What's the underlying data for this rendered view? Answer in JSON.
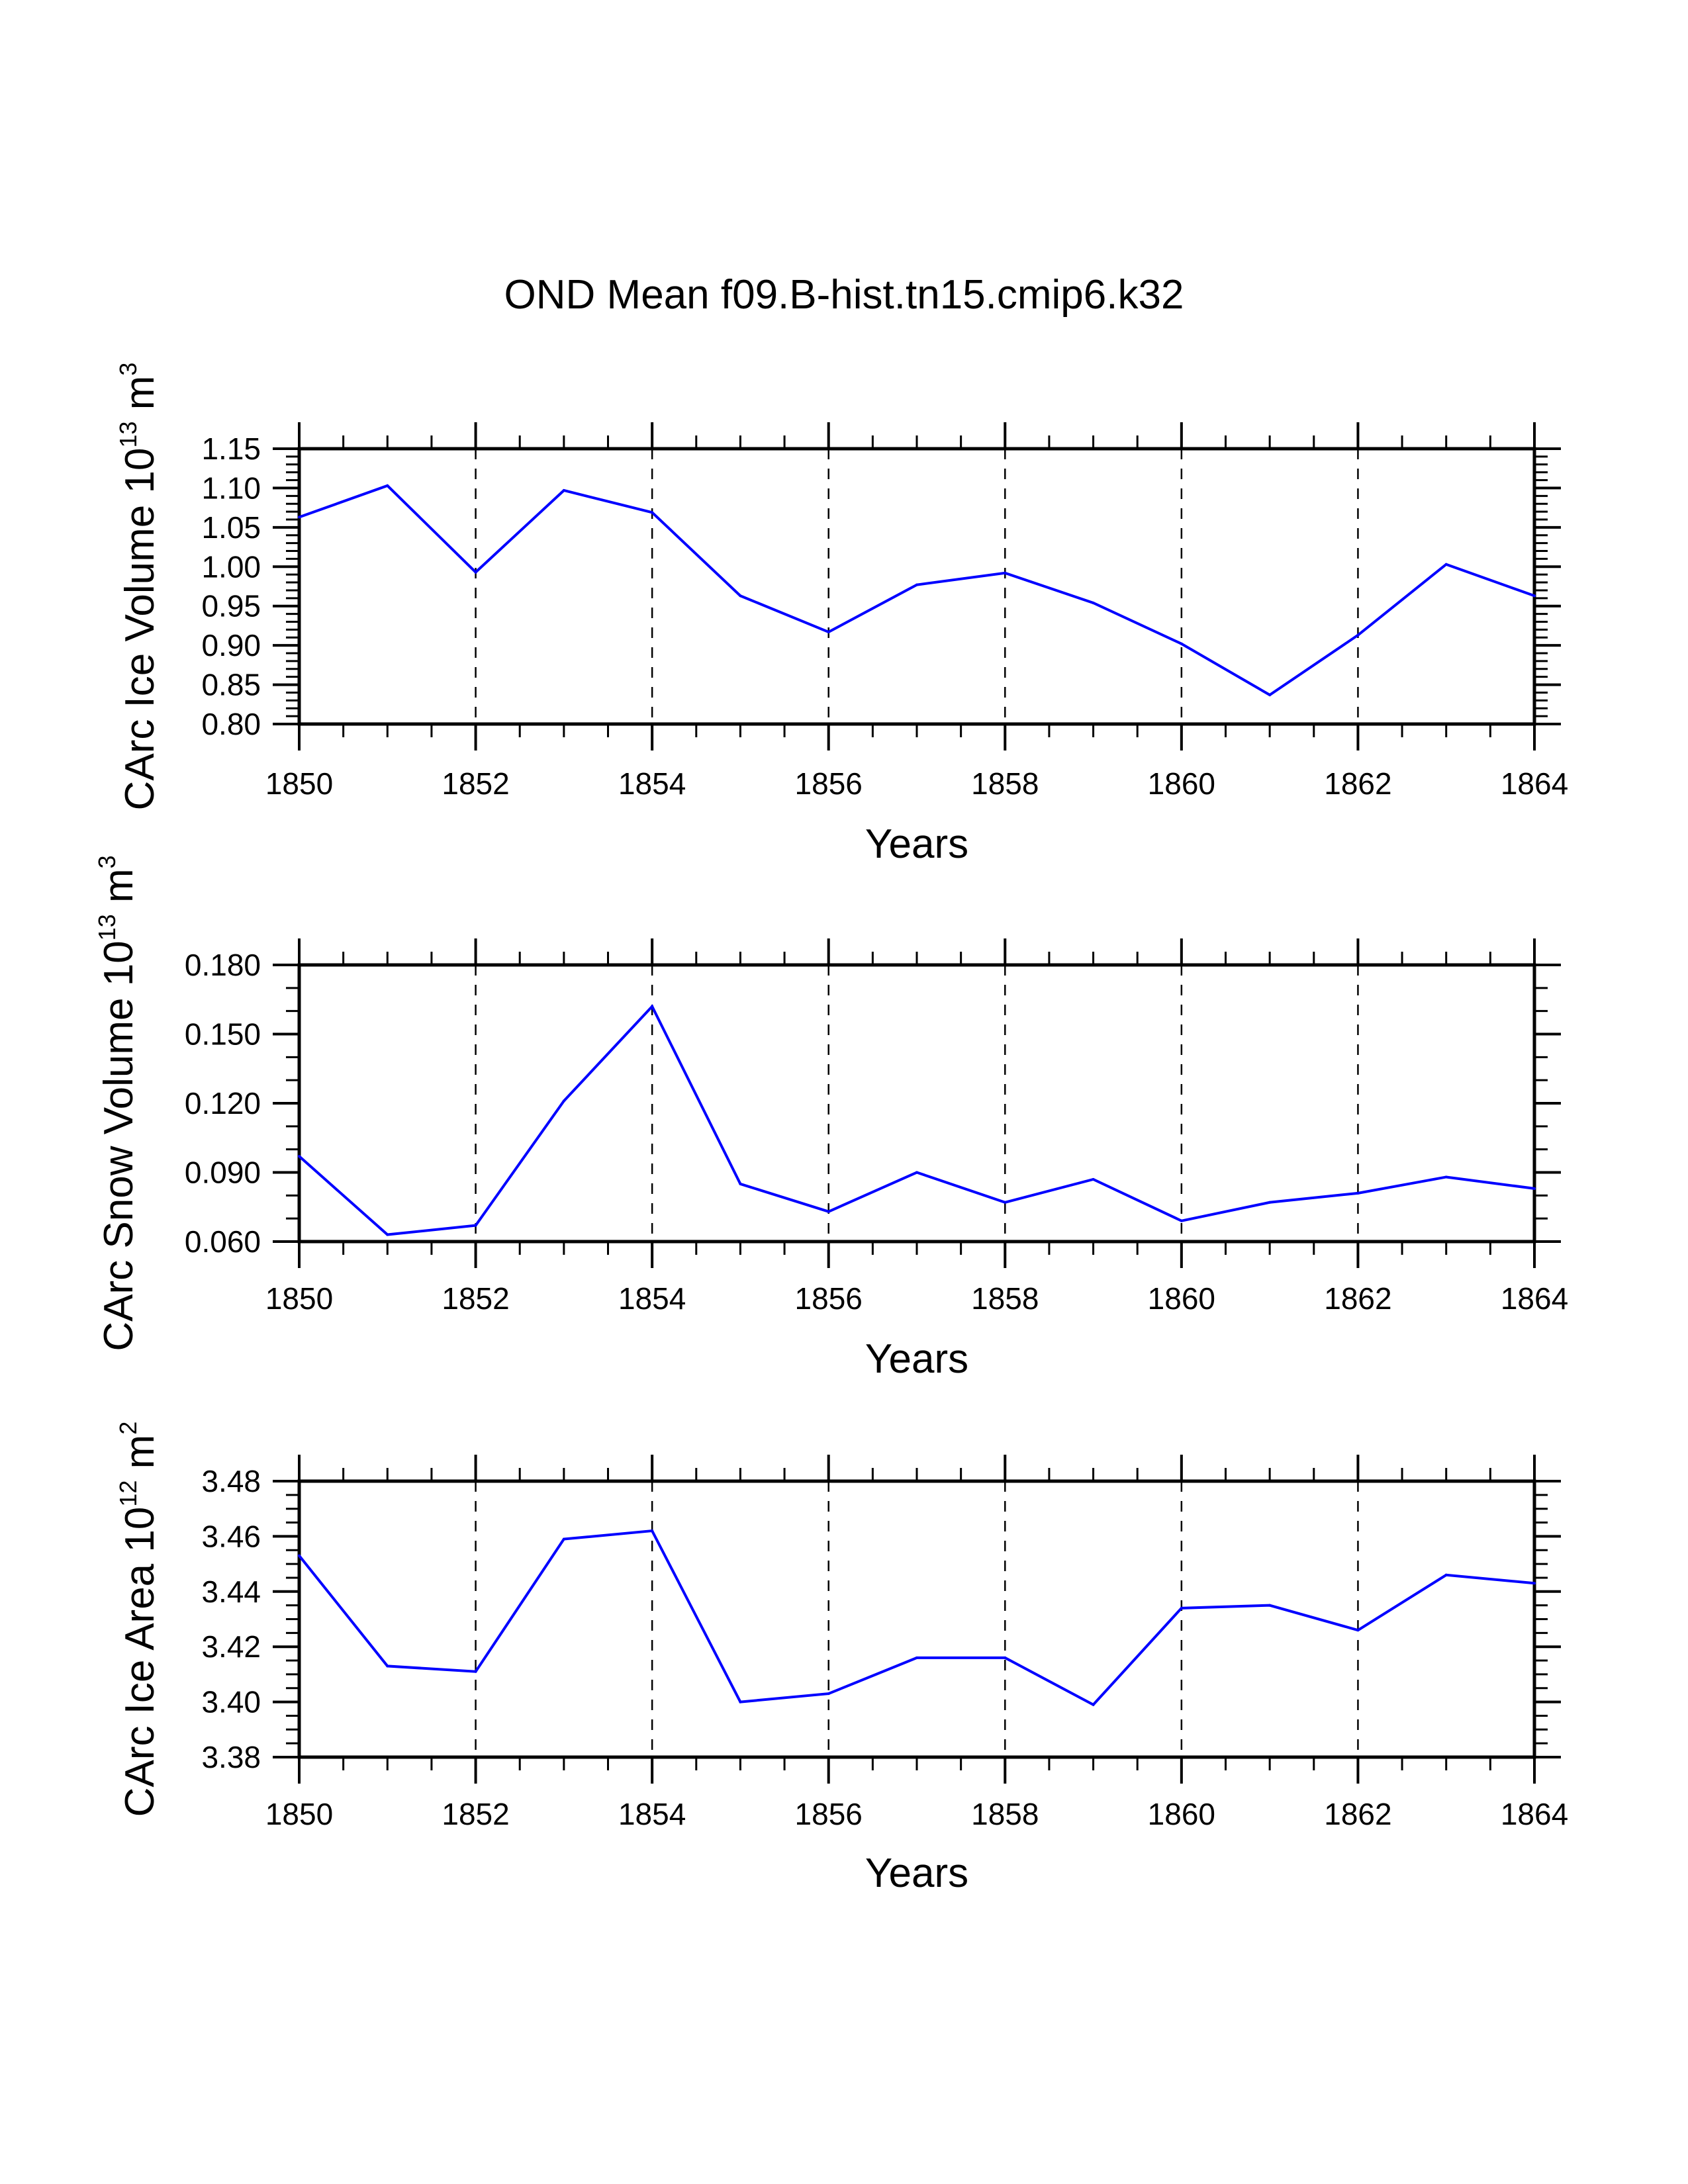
{
  "chart_data": {
    "title": "OND Mean f09.B-hist.tn15.cmip6.k32",
    "panels": [
      {
        "type": "line",
        "ylabel": "CArc Ice Volume 10^13 m^3",
        "ylabel_parts": {
          "main": "CArc Ice Volume 10",
          "exp1": "13",
          "unit": " m",
          "exp2": "3"
        },
        "xlabel": "Years",
        "x": [
          1850,
          1851,
          1852,
          1853,
          1854,
          1855,
          1856,
          1857,
          1858,
          1859,
          1860,
          1861,
          1862,
          1863,
          1864
        ],
        "series": [
          {
            "name": "CArc Ice Volume",
            "color": "#0000ff",
            "values": [
              1.063,
              1.103,
              0.993,
              1.097,
              1.069,
              0.963,
              0.917,
              0.977,
              0.992,
              0.954,
              0.902,
              0.837,
              0.913,
              1.003,
              0.963
            ]
          }
        ],
        "xlim": [
          1850,
          1864
        ],
        "ylim": [
          0.8,
          1.15
        ],
        "yticks": [
          0.8,
          0.85,
          0.9,
          0.95,
          1.0,
          1.05,
          1.1,
          1.15
        ],
        "ytick_labels": [
          "0.80",
          "0.85",
          "0.90",
          "0.95",
          "1.00",
          "1.05",
          "1.10",
          "1.15"
        ],
        "y_minor_step": 0.01,
        "xticks": [
          1850,
          1852,
          1854,
          1856,
          1858,
          1860,
          1862,
          1864
        ],
        "xtick_labels": [
          "1850",
          "1852",
          "1854",
          "1856",
          "1858",
          "1860",
          "1862",
          "1864"
        ],
        "x_minor_step": 0.5,
        "vgrid": "dashed at major x ticks"
      },
      {
        "type": "line",
        "ylabel": "CArc Snow Volume 10^13 m^3",
        "ylabel_parts": {
          "main": "CArc Snow Volume 10",
          "exp1": "13",
          "unit": " m",
          "exp2": "3"
        },
        "xlabel": "Years",
        "x": [
          1850,
          1851,
          1852,
          1853,
          1854,
          1855,
          1856,
          1857,
          1858,
          1859,
          1860,
          1861,
          1862,
          1863,
          1864
        ],
        "series": [
          {
            "name": "CArc Snow Volume",
            "color": "#0000ff",
            "values": [
              0.097,
              0.063,
              0.067,
              0.121,
              0.162,
              0.085,
              0.073,
              0.09,
              0.077,
              0.087,
              0.069,
              0.077,
              0.081,
              0.088,
              0.083
            ]
          }
        ],
        "xlim": [
          1850,
          1864
        ],
        "ylim": [
          0.06,
          0.18
        ],
        "yticks": [
          0.06,
          0.09,
          0.12,
          0.15,
          0.18
        ],
        "ytick_labels": [
          "0.060",
          "0.090",
          "0.120",
          "0.150",
          "0.180"
        ],
        "y_minor_step": 0.01,
        "xticks": [
          1850,
          1852,
          1854,
          1856,
          1858,
          1860,
          1862,
          1864
        ],
        "xtick_labels": [
          "1850",
          "1852",
          "1854",
          "1856",
          "1858",
          "1860",
          "1862",
          "1864"
        ],
        "x_minor_step": 0.5,
        "vgrid": "dashed at major x ticks"
      },
      {
        "type": "line",
        "ylabel": "CArc Ice Area 10^12 m^2",
        "ylabel_parts": {
          "main": "CArc Ice Area 10",
          "exp1": "12",
          "unit": " m",
          "exp2": "2"
        },
        "xlabel": "Years",
        "x": [
          1850,
          1851,
          1852,
          1853,
          1854,
          1855,
          1856,
          1857,
          1858,
          1859,
          1860,
          1861,
          1862,
          1863,
          1864
        ],
        "series": [
          {
            "name": "CArc Ice Area",
            "color": "#0000ff",
            "values": [
              3.453,
              3.413,
              3.411,
              3.459,
              3.462,
              3.4,
              3.403,
              3.416,
              3.416,
              3.399,
              3.434,
              3.435,
              3.426,
              3.446,
              3.443
            ]
          }
        ],
        "xlim": [
          1850,
          1864
        ],
        "ylim": [
          3.38,
          3.48
        ],
        "yticks": [
          3.38,
          3.4,
          3.42,
          3.44,
          3.46,
          3.48
        ],
        "ytick_labels": [
          "3.38",
          "3.40",
          "3.42",
          "3.44",
          "3.46",
          "3.48"
        ],
        "y_minor_step": 0.005,
        "xticks": [
          1850,
          1852,
          1854,
          1856,
          1858,
          1860,
          1862,
          1864
        ],
        "xtick_labels": [
          "1850",
          "1852",
          "1854",
          "1856",
          "1858",
          "1860",
          "1862",
          "1864"
        ],
        "x_minor_step": 0.5,
        "vgrid": "dashed at major x ticks"
      }
    ]
  }
}
